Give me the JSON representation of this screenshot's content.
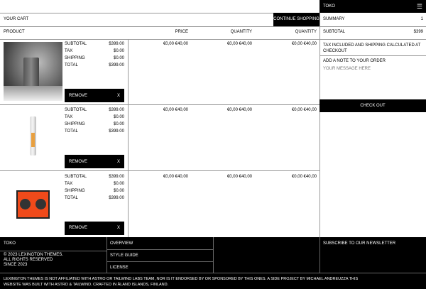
{
  "nav": {
    "brand": "TOKO",
    "menu_icon": "menu-icon"
  },
  "cart": {
    "title": "YOUR CART",
    "continue": "CONTINUE SHOPPING",
    "headers": [
      "PRODUCT",
      "PRICE",
      "QUANTITY",
      "QUANTITY"
    ],
    "items": [
      {
        "image": "black device",
        "rows": [
          [
            "SUBTOTAL",
            "$399.00"
          ],
          [
            "TAX",
            "$0.00"
          ],
          [
            "SHIPPING",
            "$0.00"
          ],
          [
            "TOTAL",
            "$399.00"
          ]
        ],
        "remove": "REMOVE",
        "remove_x": "X",
        "prices": [
          "€0,00 €40,00",
          "€0,00 €40,00",
          "€0,00 €40,00"
        ]
      },
      {
        "image": "white stick",
        "rows": [
          [
            "SUBTOTAL",
            "$399.00"
          ],
          [
            "TAX",
            "$0.00"
          ],
          [
            "SHIPPING",
            "$0.00"
          ],
          [
            "TOTAL",
            "$399.00"
          ]
        ],
        "remove": "REMOVE",
        "remove_x": "X",
        "prices": [
          "€0,00 €40,00",
          "€0,00 €40,00",
          "€0,00 €40,00"
        ]
      },
      {
        "image": "orange speaker",
        "rows": [
          [
            "SUBTOTAL",
            "$399.00"
          ],
          [
            "TAX",
            "$0.00"
          ],
          [
            "SHIPPING",
            "$0.00"
          ],
          [
            "TOTAL",
            "$399.00"
          ]
        ],
        "remove": "REMOVE",
        "remove_x": "X",
        "prices": [
          "€0,00 €40,00",
          "€0,00 €40,00",
          "€0,00 €40,00"
        ]
      }
    ]
  },
  "summary": {
    "title": "SUMMARY",
    "count": "1",
    "subtotal_label": "SUBTOTAL",
    "subtotal": "$399",
    "tax_note": "TAX INCLUDED AND SHIPPING CALCULATED AT CHECKOUT",
    "note_label": "ADD A NOTE TO YOUR ORDER",
    "note_placeholder": "YOUR MESSAGE HERE",
    "checkout": "CHECK OUT"
  },
  "footer": {
    "brand": "TOKO",
    "copyright": [
      "© 2023 LEXINGTON THEMES.",
      "ALL RIGHTS RESERVED",
      "SINCE 2023"
    ],
    "links": [
      "OVERVIEW",
      "STYLE GUIDE",
      "LICENSE"
    ],
    "newsletter": "SUBSCRIBE TO OUR NEWSLETTER",
    "disclaimer": "LEXINGTON THEMES IS NOT AFFILIATED WITH ASTRO OR TAILWIND LABS TEAM, NOR IS IT ENDORSED BY OR SPONSORED BY THIS ONES. A SIDE PROJECT BY MICHAEL ANDREUZZA THIS WEBSITE WAS BUILT WITH ASTRO & TAILWIND. CRAFTED IN ÅLAND ISLANDS, FINLAND."
  },
  "colors": {
    "accent": "#000000",
    "speaker": "#f04a1a"
  }
}
